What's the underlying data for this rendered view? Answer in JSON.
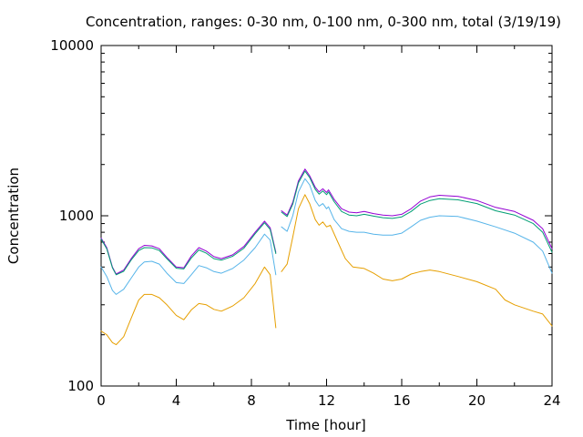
{
  "chart_data": {
    "type": "line",
    "title": "Concentration, ranges: 0-30 nm, 0-100 nm, 0-300 nm, total (3/19/19)",
    "xlabel": "Time [hour]",
    "ylabel": "Concentration",
    "xlim": [
      0,
      24
    ],
    "ylim": [
      100,
      10000
    ],
    "y_scale": "log",
    "grid": false,
    "x_ticks": [
      0,
      4,
      8,
      12,
      16,
      20,
      24
    ],
    "x_tick_labels": [
      "0",
      "4",
      "8",
      "12",
      "16",
      "20",
      "24"
    ],
    "y_ticks": [
      100,
      1000,
      10000
    ],
    "y_tick_labels": [
      "100",
      "1000",
      "10000"
    ],
    "colors": {
      "total": "#9400d3",
      "0-300 nm": "#009e73",
      "0-100 nm": "#56b4e9",
      "0-30 nm": "#e69f00"
    },
    "series": [
      {
        "key": "total",
        "color": "#9400d3",
        "segments": [
          [
            [
              0,
              740
            ],
            [
              0.3,
              650
            ],
            [
              0.6,
              500
            ],
            [
              0.8,
              455
            ],
            [
              1.2,
              480
            ],
            [
              1.6,
              560
            ],
            [
              2.0,
              640
            ],
            [
              2.3,
              670
            ],
            [
              2.7,
              665
            ],
            [
              3.1,
              640
            ],
            [
              3.5,
              570
            ],
            [
              4.0,
              500
            ],
            [
              4.4,
              495
            ],
            [
              4.8,
              580
            ],
            [
              5.2,
              650
            ],
            [
              5.6,
              620
            ],
            [
              6.0,
              575
            ],
            [
              6.4,
              560
            ],
            [
              7.0,
              590
            ],
            [
              7.6,
              660
            ],
            [
              8.2,
              800
            ],
            [
              8.7,
              930
            ],
            [
              9.0,
              850
            ],
            [
              9.3,
              610
            ]
          ],
          [
            [
              9.6,
              1070
            ],
            [
              9.9,
              1010
            ],
            [
              10.2,
              1200
            ],
            [
              10.5,
              1600
            ],
            [
              10.85,
              1880
            ],
            [
              11.1,
              1720
            ],
            [
              11.4,
              1470
            ],
            [
              11.6,
              1380
            ],
            [
              11.8,
              1440
            ],
            [
              12.0,
              1370
            ],
            [
              12.1,
              1420
            ],
            [
              12.4,
              1250
            ],
            [
              12.8,
              1100
            ],
            [
              13.2,
              1050
            ],
            [
              13.6,
              1040
            ],
            [
              14.0,
              1060
            ],
            [
              14.5,
              1030
            ],
            [
              15.0,
              1010
            ],
            [
              15.5,
              1000
            ],
            [
              16.0,
              1020
            ],
            [
              16.5,
              1100
            ],
            [
              17.0,
              1220
            ],
            [
              17.5,
              1290
            ],
            [
              18.0,
              1320
            ],
            [
              19.0,
              1300
            ],
            [
              20.0,
              1230
            ],
            [
              21.0,
              1120
            ],
            [
              22.0,
              1060
            ],
            [
              23.0,
              940
            ],
            [
              23.5,
              840
            ],
            [
              24.0,
              640
            ]
          ]
        ]
      },
      {
        "key": "0-300 nm",
        "color": "#009e73",
        "segments": [
          [
            [
              0,
              730
            ],
            [
              0.3,
              640
            ],
            [
              0.6,
              495
            ],
            [
              0.8,
              450
            ],
            [
              1.2,
              472
            ],
            [
              1.6,
              550
            ],
            [
              2.0,
              625
            ],
            [
              2.3,
              650
            ],
            [
              2.7,
              648
            ],
            [
              3.1,
              625
            ],
            [
              3.5,
              560
            ],
            [
              4.0,
              492
            ],
            [
              4.4,
              487
            ],
            [
              4.8,
              565
            ],
            [
              5.2,
              630
            ],
            [
              5.6,
              603
            ],
            [
              6.0,
              560
            ],
            [
              6.4,
              548
            ],
            [
              7.0,
              578
            ],
            [
              7.6,
              645
            ],
            [
              8.2,
              785
            ],
            [
              8.7,
              910
            ],
            [
              9.0,
              830
            ],
            [
              9.3,
              600
            ]
          ],
          [
            [
              9.6,
              1050
            ],
            [
              9.9,
              990
            ],
            [
              10.2,
              1170
            ],
            [
              10.5,
              1560
            ],
            [
              10.85,
              1830
            ],
            [
              11.1,
              1680
            ],
            [
              11.4,
              1430
            ],
            [
              11.6,
              1340
            ],
            [
              11.8,
              1400
            ],
            [
              12.0,
              1330
            ],
            [
              12.1,
              1380
            ],
            [
              12.4,
              1210
            ],
            [
              12.8,
              1060
            ],
            [
              13.2,
              1010
            ],
            [
              13.6,
              1000
            ],
            [
              14.0,
              1020
            ],
            [
              14.5,
              995
            ],
            [
              15.0,
              975
            ],
            [
              15.5,
              965
            ],
            [
              16.0,
              985
            ],
            [
              16.5,
              1060
            ],
            [
              17.0,
              1170
            ],
            [
              17.5,
              1230
            ],
            [
              18.0,
              1260
            ],
            [
              19.0,
              1240
            ],
            [
              20.0,
              1180
            ],
            [
              21.0,
              1070
            ],
            [
              22.0,
              1010
            ],
            [
              23.0,
              900
            ],
            [
              23.5,
              800
            ],
            [
              24.0,
              610
            ]
          ]
        ]
      },
      {
        "key": "0-100 nm",
        "color": "#56b4e9",
        "segments": [
          [
            [
              0,
              500
            ],
            [
              0.3,
              440
            ],
            [
              0.6,
              365
            ],
            [
              0.8,
              345
            ],
            [
              1.2,
              370
            ],
            [
              1.6,
              430
            ],
            [
              2.0,
              500
            ],
            [
              2.3,
              535
            ],
            [
              2.7,
              540
            ],
            [
              3.1,
              520
            ],
            [
              3.5,
              460
            ],
            [
              4.0,
              405
            ],
            [
              4.4,
              400
            ],
            [
              4.8,
              450
            ],
            [
              5.2,
              510
            ],
            [
              5.6,
              495
            ],
            [
              6.0,
              470
            ],
            [
              6.4,
              460
            ],
            [
              7.0,
              490
            ],
            [
              7.6,
              550
            ],
            [
              8.2,
              650
            ],
            [
              8.7,
              780
            ],
            [
              9.0,
              720
            ],
            [
              9.3,
              450
            ]
          ],
          [
            [
              9.6,
              860
            ],
            [
              9.9,
              810
            ],
            [
              10.2,
              1000
            ],
            [
              10.5,
              1380
            ],
            [
              10.85,
              1650
            ],
            [
              11.1,
              1520
            ],
            [
              11.4,
              1230
            ],
            [
              11.6,
              1140
            ],
            [
              11.8,
              1180
            ],
            [
              12.0,
              1100
            ],
            [
              12.1,
              1130
            ],
            [
              12.4,
              950
            ],
            [
              12.8,
              840
            ],
            [
              13.2,
              810
            ],
            [
              13.6,
              800
            ],
            [
              14.0,
              800
            ],
            [
              14.5,
              780
            ],
            [
              15.0,
              770
            ],
            [
              15.5,
              770
            ],
            [
              16.0,
              790
            ],
            [
              16.5,
              860
            ],
            [
              17.0,
              940
            ],
            [
              17.5,
              980
            ],
            [
              18.0,
              1000
            ],
            [
              19.0,
              990
            ],
            [
              20.0,
              930
            ],
            [
              21.0,
              860
            ],
            [
              22.0,
              790
            ],
            [
              23.0,
              700
            ],
            [
              23.5,
              620
            ],
            [
              24.0,
              460
            ]
          ]
        ]
      },
      {
        "key": "0-30 nm",
        "color": "#e69f00",
        "segments": [
          [
            [
              0,
              210
            ],
            [
              0.3,
              200
            ],
            [
              0.6,
              180
            ],
            [
              0.8,
              175
            ],
            [
              1.2,
              195
            ],
            [
              1.6,
              250
            ],
            [
              2.0,
              320
            ],
            [
              2.3,
              345
            ],
            [
              2.7,
              345
            ],
            [
              3.1,
              330
            ],
            [
              3.5,
              300
            ],
            [
              4.0,
              260
            ],
            [
              4.4,
              245
            ],
            [
              4.8,
              280
            ],
            [
              5.2,
              305
            ],
            [
              5.6,
              300
            ],
            [
              6.0,
              282
            ],
            [
              6.4,
              275
            ],
            [
              7.0,
              295
            ],
            [
              7.6,
              330
            ],
            [
              8.2,
              400
            ],
            [
              8.7,
              500
            ],
            [
              9.0,
              450
            ],
            [
              9.3,
              220
            ]
          ],
          [
            [
              9.6,
              470
            ],
            [
              9.9,
              520
            ],
            [
              10.2,
              750
            ],
            [
              10.5,
              1100
            ],
            [
              10.85,
              1330
            ],
            [
              11.1,
              1180
            ],
            [
              11.4,
              950
            ],
            [
              11.6,
              880
            ],
            [
              11.8,
              920
            ],
            [
              12.0,
              860
            ],
            [
              12.2,
              880
            ],
            [
              12.6,
              700
            ],
            [
              13.0,
              560
            ],
            [
              13.4,
              500
            ],
            [
              14.0,
              490
            ],
            [
              14.5,
              460
            ],
            [
              15.0,
              425
            ],
            [
              15.5,
              415
            ],
            [
              16.0,
              425
            ],
            [
              16.5,
              455
            ],
            [
              17.0,
              470
            ],
            [
              17.5,
              480
            ],
            [
              18.0,
              470
            ],
            [
              19.0,
              440
            ],
            [
              20.0,
              410
            ],
            [
              21.0,
              370
            ],
            [
              21.5,
              320
            ],
            [
              22.0,
              300
            ],
            [
              23.0,
              275
            ],
            [
              23.5,
              265
            ],
            [
              24.0,
              225
            ]
          ]
        ]
      }
    ]
  }
}
